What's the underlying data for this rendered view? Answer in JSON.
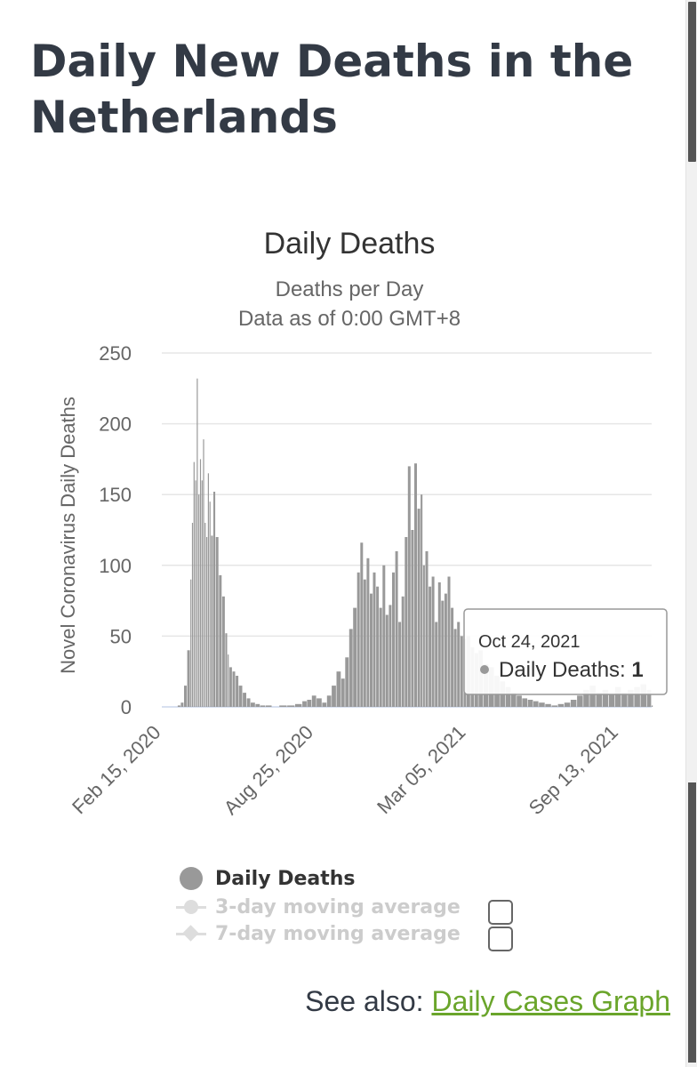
{
  "page": {
    "title": "Daily New Deaths in the Netherlands"
  },
  "chart_data": {
    "type": "bar",
    "title": "Daily Deaths",
    "subtitle_lines": [
      "Deaths per Day",
      "Data as of 0:00 GMT+8"
    ],
    "ylabel": "Novel Coronavirus Daily Deaths",
    "xlabel": "",
    "ylim": [
      0,
      250
    ],
    "yticks": [
      0,
      50,
      100,
      150,
      200,
      250
    ],
    "xticks": [
      "Feb 15, 2020",
      "Aug 25, 2020",
      "Mar 05, 2021",
      "Sep 13, 2021"
    ],
    "x_start": "2020-02-15",
    "x_end": "2021-10-24",
    "grid": true,
    "bar_color": "#999999",
    "series": [
      {
        "name": "Daily Deaths",
        "x": [
          "2020-02-15",
          "2020-02-28",
          "2020-03-06",
          "2020-03-10",
          "2020-03-14",
          "2020-03-18",
          "2020-03-22",
          "2020-03-24",
          "2020-03-26",
          "2020-03-28",
          "2020-03-30",
          "2020-04-01",
          "2020-04-03",
          "2020-04-05",
          "2020-04-07",
          "2020-04-09",
          "2020-04-11",
          "2020-04-13",
          "2020-04-15",
          "2020-04-17",
          "2020-04-20",
          "2020-04-23",
          "2020-04-27",
          "2020-05-01",
          "2020-05-05",
          "2020-05-08",
          "2020-05-10",
          "2020-05-14",
          "2020-05-18",
          "2020-05-22",
          "2020-05-27",
          "2020-06-01",
          "2020-06-06",
          "2020-06-12",
          "2020-06-18",
          "2020-06-25",
          "2020-07-03",
          "2020-07-12",
          "2020-07-22",
          "2020-08-01",
          "2020-08-10",
          "2020-08-16",
          "2020-08-22",
          "2020-08-28",
          "2020-09-04",
          "2020-09-10",
          "2020-09-16",
          "2020-09-22",
          "2020-09-28",
          "2020-10-03",
          "2020-10-08",
          "2020-10-13",
          "2020-10-18",
          "2020-10-22",
          "2020-10-26",
          "2020-10-30",
          "2020-11-03",
          "2020-11-07",
          "2020-11-11",
          "2020-11-15",
          "2020-11-19",
          "2020-11-23",
          "2020-11-27",
          "2020-12-01",
          "2020-12-05",
          "2020-12-09",
          "2020-12-13",
          "2020-12-17",
          "2020-12-21",
          "2020-12-25",
          "2020-12-29",
          "2021-01-02",
          "2021-01-06",
          "2021-01-09",
          "2021-01-12",
          "2021-01-16",
          "2021-01-20",
          "2021-01-24",
          "2021-01-28",
          "2021-02-01",
          "2021-02-05",
          "2021-02-09",
          "2021-02-13",
          "2021-02-17",
          "2021-02-21",
          "2021-02-25",
          "2021-03-01",
          "2021-03-05",
          "2021-03-10",
          "2021-03-15",
          "2021-03-20",
          "2021-03-26",
          "2021-04-02",
          "2021-04-09",
          "2021-04-16",
          "2021-04-23",
          "2021-04-30",
          "2021-05-07",
          "2021-05-14",
          "2021-05-21",
          "2021-05-28",
          "2021-06-04",
          "2021-06-12",
          "2021-06-20",
          "2021-06-28",
          "2021-07-06",
          "2021-07-14",
          "2021-07-22",
          "2021-07-30",
          "2021-08-07",
          "2021-08-15",
          "2021-08-23",
          "2021-08-31",
          "2021-09-08",
          "2021-09-16",
          "2021-09-24",
          "2021-10-02",
          "2021-10-10",
          "2021-10-18",
          "2021-10-24"
        ],
        "values": [
          0,
          0,
          1,
          3,
          15,
          40,
          90,
          130,
          173,
          160,
          232,
          150,
          175,
          160,
          189,
          130,
          120,
          165,
          145,
          121,
          152,
          120,
          93,
          78,
          52,
          37,
          28,
          25,
          22,
          15,
          10,
          6,
          3,
          2,
          1,
          1,
          0,
          1,
          1,
          2,
          4,
          5,
          8,
          6,
          3,
          8,
          15,
          25,
          20,
          35,
          55,
          70,
          95,
          116,
          90,
          105,
          80,
          95,
          85,
          70,
          100,
          65,
          72,
          95,
          110,
          60,
          78,
          120,
          170,
          125,
          172,
          140,
          150,
          100,
          110,
          85,
          92,
          60,
          88,
          75,
          80,
          92,
          70,
          55,
          60,
          50,
          48,
          50,
          42,
          38,
          40,
          30,
          28,
          22,
          18,
          14,
          10,
          8,
          6,
          5,
          4,
          3,
          2,
          1,
          2,
          3,
          5,
          8,
          12,
          15,
          10,
          12,
          9,
          14,
          10,
          12,
          14,
          16,
          12,
          1
        ]
      },
      {
        "name": "3-day moving average",
        "enabled": false
      },
      {
        "name": "7-day moving average",
        "enabled": false
      }
    ],
    "tooltip": {
      "date": "Oct 24, 2021",
      "series": "Daily Deaths",
      "label": "Daily Deaths: ",
      "value": "1"
    }
  },
  "legend": {
    "items": [
      "Daily Deaths",
      "3-day moving average",
      "7-day moving average"
    ]
  },
  "footer": {
    "see_also_label": "See also:",
    "link_text": "Daily Cases Graph"
  }
}
